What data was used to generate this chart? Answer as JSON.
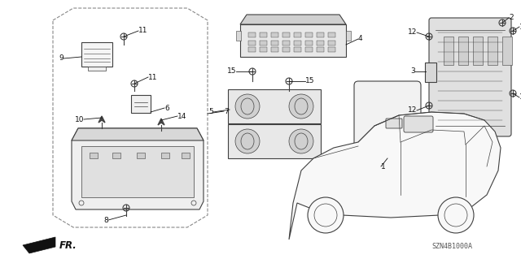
{
  "bg_color": "#ffffff",
  "diagram_code": "SZN4B1000A",
  "fr_arrow_label": "FR.",
  "line_color": "#404040",
  "label_color": "#111111",
  "label_fontsize": 6.5,
  "diagram_code_fontsize": 6.0,
  "figsize": [
    6.4,
    3.19
  ],
  "dpi": 100,
  "xlim": [
    0,
    640
  ],
  "ylim": [
    0,
    319
  ]
}
